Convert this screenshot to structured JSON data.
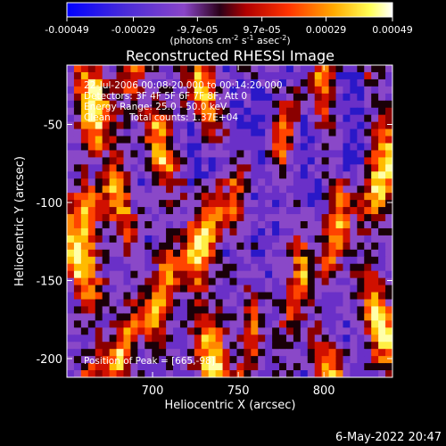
{
  "chart_data": {
    "type": "heatmap",
    "title": "Reconstructed RHESSI Image",
    "xlabel": "Heliocentric X (arcsec)",
    "ylabel": "Heliocentric Y (arcsec)",
    "xlim": [
      650,
      840
    ],
    "ylim": [
      -212,
      -12
    ],
    "xticks": [
      "700",
      "750",
      "800"
    ],
    "xtick_values": [
      700,
      750,
      800
    ],
    "yticks": [
      "-50",
      "-100",
      "-150",
      "-200"
    ],
    "ytick_values": [
      -50,
      -100,
      -150,
      -200
    ],
    "colorbar": {
      "ticks": [
        "-0.00049",
        "-0.00029",
        "-9.7e-05",
        "9.7e-05",
        "0.00029",
        "0.00049"
      ],
      "tick_values": [
        -0.00049,
        -0.00029,
        -9.7e-05,
        9.7e-05,
        0.00029,
        0.00049
      ],
      "range": [
        -0.00049,
        0.00049
      ],
      "unit_label_parts": [
        "(photons cm",
        "-2",
        " s",
        "-1",
        " asec",
        "-2",
        ")"
      ]
    },
    "annotations": {
      "time": "22-Jul-2006 00:08:20.000 to 00:14:20.000",
      "detectors": "Detectors: 3F 4F 5F 6F 7F 8F, Att 0",
      "energy": "Energy Range: 25.0 - 50.0 keV",
      "clean_label": "Clean",
      "counts": "Total counts: 1.37E+04",
      "peak": "Position of Peak = [665,-98]"
    },
    "colors": {
      "background": "#000000",
      "colormap": [
        "#0000ff",
        "#7a38c8",
        "#9a55d8",
        "#200000",
        "#cc0000",
        "#ff5500",
        "#ffaa00",
        "#ffff66",
        "#ffffff"
      ]
    }
  },
  "footer": {
    "date": "6-May-2022 20:47"
  }
}
